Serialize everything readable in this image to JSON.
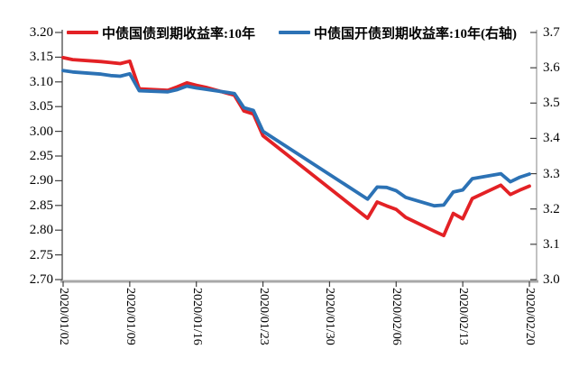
{
  "chart_data": {
    "type": "line",
    "title": "",
    "grid": false,
    "legend_position": "top",
    "x": [
      "2020/01/02",
      "2020/01/03",
      "2020/01/06",
      "2020/01/07",
      "2020/01/08",
      "2020/01/09",
      "2020/01/10",
      "2020/01/13",
      "2020/01/14",
      "2020/01/15",
      "2020/01/16",
      "2020/01/17",
      "2020/01/20",
      "2020/01/21",
      "2020/01/22",
      "2020/01/23",
      "2020/02/03",
      "2020/02/04",
      "2020/02/05",
      "2020/02/06",
      "2020/02/07",
      "2020/02/10",
      "2020/02/11",
      "2020/02/12",
      "2020/02/13",
      "2020/02/14",
      "2020/02/17",
      "2020/02/18",
      "2020/02/19",
      "2020/02/20"
    ],
    "x_ticks": [
      "2020/01/02",
      "2020/01/09",
      "2020/01/16",
      "2020/01/23",
      "2020/01/30",
      "2020/02/06",
      "2020/02/13",
      "2020/02/20"
    ],
    "series": [
      {
        "name": "中债国债到期收益率:10年",
        "axis": "left",
        "color": "#e32125",
        "values": [
          3.149,
          3.145,
          3.141,
          3.139,
          3.137,
          3.142,
          3.086,
          3.083,
          3.09,
          3.098,
          3.093,
          3.089,
          3.073,
          3.041,
          3.035,
          2.991,
          2.824,
          2.857,
          2.849,
          2.842,
          2.826,
          2.798,
          2.789,
          2.834,
          2.823,
          2.864,
          2.891,
          2.872,
          2.881,
          2.889
        ]
      },
      {
        "name": "中债国开债到期收益率:10年(右轴)",
        "axis": "right",
        "color": "#2c72b5",
        "values": [
          3.592,
          3.588,
          3.582,
          3.578,
          3.576,
          3.583,
          3.535,
          3.532,
          3.538,
          3.548,
          3.543,
          3.539,
          3.527,
          3.487,
          3.479,
          3.42,
          3.228,
          3.262,
          3.261,
          3.252,
          3.233,
          3.209,
          3.211,
          3.248,
          3.254,
          3.286,
          3.3,
          3.277,
          3.29,
          3.299
        ]
      }
    ],
    "left_axis": {
      "min": 2.7,
      "max": 3.2,
      "ticks": [
        "3.20",
        "3.15",
        "3.10",
        "3.05",
        "3.00",
        "2.95",
        "2.90",
        "2.85",
        "2.80",
        "2.75",
        "2.70"
      ]
    },
    "right_axis": {
      "min": 3.0,
      "max": 3.7,
      "ticks": [
        "3.7",
        "3.6",
        "3.5",
        "3.4",
        "3.3",
        "3.2",
        "3.1",
        "3.0"
      ]
    },
    "axis_color": "#a8a8a8",
    "tick_color": "#404040"
  }
}
